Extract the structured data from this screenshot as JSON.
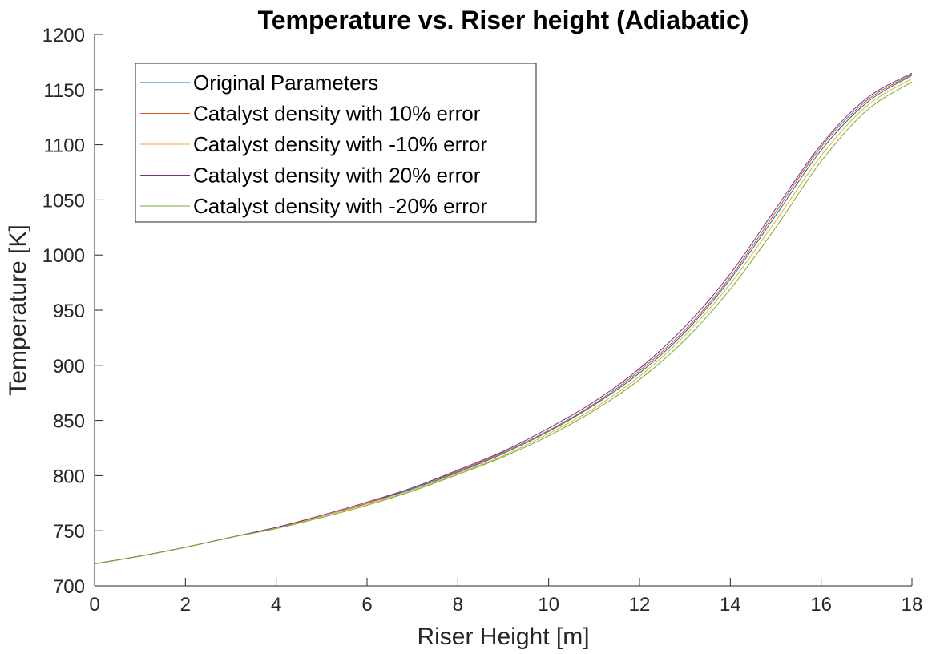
{
  "chart_data": {
    "type": "line",
    "title": "Temperature vs. Riser height (Adiabatic)",
    "xlabel": "Riser Height [m]",
    "ylabel": "Temperature [K]",
    "xlim": [
      0,
      18
    ],
    "ylim": [
      700,
      1200
    ],
    "xticks": [
      0,
      2,
      4,
      6,
      8,
      10,
      12,
      14,
      16,
      18
    ],
    "yticks": [
      700,
      750,
      800,
      850,
      900,
      950,
      1000,
      1050,
      1100,
      1150,
      1200
    ],
    "grid": false,
    "legend_position": "top-left",
    "x": [
      0,
      1,
      2,
      3,
      4,
      5,
      6,
      7,
      8,
      9,
      10,
      11,
      12,
      13,
      14,
      15,
      16,
      17,
      18
    ],
    "series": [
      {
        "name": "Original Parameters",
        "color": "#0072BD",
        "values": [
          720,
          727,
          735,
          744,
          753,
          763,
          775,
          788,
          803,
          820,
          840,
          864,
          893,
          930,
          978,
          1036,
          1095,
          1138,
          1163
        ]
      },
      {
        "name": "Catalyst density with 10% error",
        "color": "#D95319",
        "values": [
          720,
          727,
          735,
          744,
          753,
          763,
          775,
          789,
          804,
          821,
          841,
          865,
          895,
          932,
          980,
          1039,
          1098,
          1140,
          1164
        ]
      },
      {
        "name": "Catalyst density with -10% error",
        "color": "#EDB120",
        "values": [
          720,
          727,
          735,
          744,
          752,
          763,
          774,
          787,
          802,
          818,
          838,
          861,
          890,
          927,
          974,
          1031,
          1090,
          1135,
          1160
        ]
      },
      {
        "name": "Catalyst density with 20% error",
        "color": "#7E2F8E",
        "values": [
          720,
          727,
          735,
          744,
          753,
          764,
          776,
          789,
          805,
          822,
          843,
          867,
          897,
          935,
          983,
          1042,
          1100,
          1142,
          1165
        ]
      },
      {
        "name": "Catalyst density with -20% error",
        "color": "#77AC30",
        "values": [
          720,
          727,
          735,
          744,
          752,
          762,
          773,
          786,
          801,
          817,
          836,
          859,
          887,
          923,
          969,
          1025,
          1085,
          1131,
          1157
        ]
      }
    ]
  }
}
